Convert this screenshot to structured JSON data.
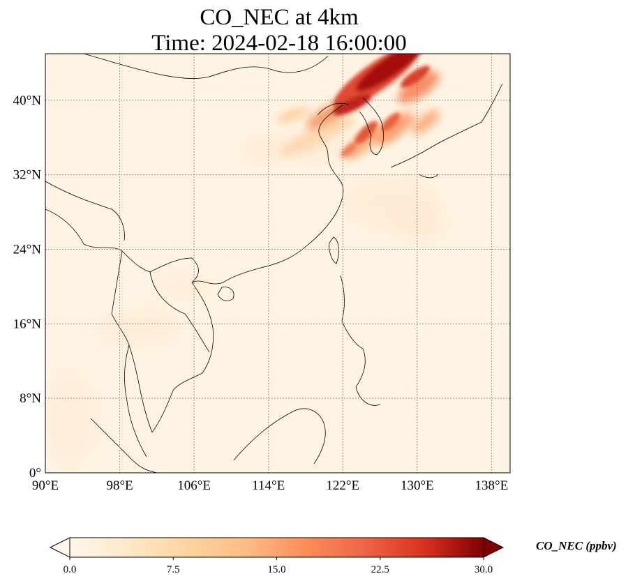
{
  "figure": {
    "title_line1": "CO_NEC at 4km",
    "title_line2": "Time: 2024-02-18 16:00:00"
  },
  "map": {
    "lon_range": [
      90,
      140
    ],
    "lat_range": [
      0,
      45
    ],
    "lon_ticks": [
      {
        "value": 90,
        "label": "90°E"
      },
      {
        "value": 98,
        "label": "98°E"
      },
      {
        "value": 106,
        "label": "106°E"
      },
      {
        "value": 114,
        "label": "114°E"
      },
      {
        "value": 122,
        "label": "122°E"
      },
      {
        "value": 130,
        "label": "130°E"
      },
      {
        "value": 138,
        "label": "138°E"
      }
    ],
    "lat_ticks": [
      {
        "value": 0,
        "label": "0°"
      },
      {
        "value": 8,
        "label": "8°N"
      },
      {
        "value": 16,
        "label": "16°N"
      },
      {
        "value": 24,
        "label": "24°N"
      },
      {
        "value": 32,
        "label": "32°N"
      },
      {
        "value": 40,
        "label": "40°N"
      }
    ],
    "gridlines": "dotted",
    "colormap": "OrRd",
    "colors": {
      "low": "#fff7ec",
      "mid": "#fdbb84",
      "high": "#7f0000",
      "grid": "#777777",
      "coast": "#000000"
    }
  },
  "colorbar": {
    "label": "CO_NEC (ppbv)",
    "min": 0.0,
    "max": 30.0,
    "extend": "both",
    "ticks": [
      {
        "value": 0.0,
        "label": "0.0"
      },
      {
        "value": 7.5,
        "label": "7.5"
      },
      {
        "value": 15.0,
        "label": "15.0"
      },
      {
        "value": 22.5,
        "label": "22.5"
      },
      {
        "value": 30.0,
        "label": "30.0"
      }
    ]
  }
}
